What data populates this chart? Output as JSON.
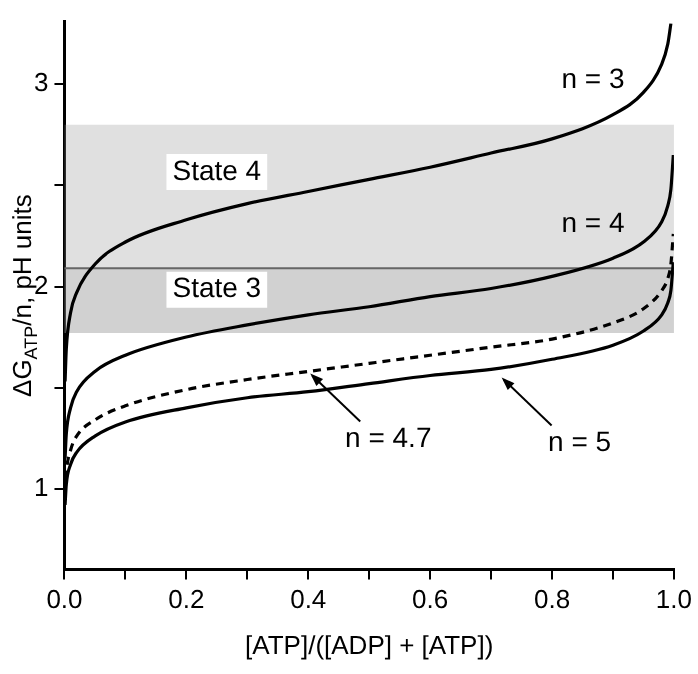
{
  "chart_data": {
    "type": "line",
    "xlabel": "[ATP]/([ADP] + [ATP])",
    "ylabel": "ΔG$_{ATP}$/n, pH units",
    "x": [
      0.001,
      0.003,
      0.01,
      0.02,
      0.05,
      0.1,
      0.2,
      0.3,
      0.4,
      0.5,
      0.6,
      0.7,
      0.8,
      0.9,
      0.95,
      0.98,
      0.99,
      0.995,
      0.999
    ],
    "series": [
      {
        "name": "n = 3",
        "color": "#000000",
        "line_style": "solid",
        "values": [
          1.53,
          1.69,
          1.87,
          1.97,
          2.11,
          2.22,
          2.33,
          2.41,
          2.47,
          2.53,
          2.59,
          2.66,
          2.73,
          2.85,
          2.96,
          3.1,
          3.2,
          3.3,
          null
        ]
      },
      {
        "name": "n = 4",
        "color": "#000000",
        "line_style": "solid",
        "values": [
          1.15,
          1.27,
          1.4,
          1.48,
          1.58,
          1.66,
          1.75,
          1.81,
          1.86,
          1.9,
          1.95,
          1.99,
          2.05,
          2.14,
          2.22,
          2.32,
          2.4,
          2.48,
          2.65
        ]
      },
      {
        "color": "#000000",
        "line_style": "dashed",
        "values": [
          0.98,
          1.08,
          1.19,
          1.26,
          1.34,
          1.41,
          1.49,
          1.54,
          1.58,
          1.62,
          1.66,
          1.7,
          1.74,
          1.82,
          1.89,
          1.98,
          2.04,
          2.11,
          2.26
        ]
      },
      {
        "color": "#000000",
        "line_style": "solid",
        "values": [
          0.92,
          1.02,
          1.12,
          1.18,
          1.26,
          1.33,
          1.4,
          1.45,
          1.48,
          1.52,
          1.56,
          1.59,
          1.64,
          1.71,
          1.78,
          1.86,
          1.92,
          1.98,
          2.12
        ]
      }
    ],
    "xlim": [
      0,
      1
    ],
    "xticks": [
      {
        "value": 0,
        "label": "0.0"
      },
      {
        "value": 0.1,
        "label": null
      },
      {
        "value": 0.2,
        "label": "0.2"
      },
      {
        "value": 0.3,
        "label": null
      },
      {
        "value": 0.4,
        "label": "0.4"
      },
      {
        "value": 0.5,
        "label": null
      },
      {
        "value": 0.6,
        "label": "0.6"
      },
      {
        "value": 0.7,
        "label": null
      },
      {
        "value": 0.8,
        "label": "0.8"
      },
      {
        "value": 0.9,
        "label": null
      },
      {
        "value": 1,
        "label": "1.0"
      }
    ],
    "ylim": [
      0.6,
      3.31
    ],
    "yticks": [
      {
        "value": 1,
        "label": "1"
      },
      {
        "value": 1.5,
        "label": null
      },
      {
        "value": 2,
        "label": "2"
      },
      {
        "value": 2.5,
        "label": null
      },
      {
        "value": 3,
        "label": "3"
      }
    ],
    "bands": [
      {
        "axis": "y",
        "from": 2.09,
        "to": 2.8,
        "label": "State 4",
        "color": "#999999"
      },
      {
        "axis": "y",
        "from": 1.77,
        "to": 2.09,
        "label": "State 3",
        "color": "#999999"
      }
    ],
    "ref_lines": [
      {
        "axis": "y",
        "value": 2.09,
        "color": "#666666",
        "line_style": "solid"
      }
    ],
    "annotations": [
      {
        "text": "n = 4.7",
        "x": 0.4,
        "y": 1.58
      },
      {
        "text": "n = 5",
        "x": 0.714,
        "y": 1.56
      }
    ],
    "grid": false,
    "legend": false,
    "marker": "none"
  }
}
